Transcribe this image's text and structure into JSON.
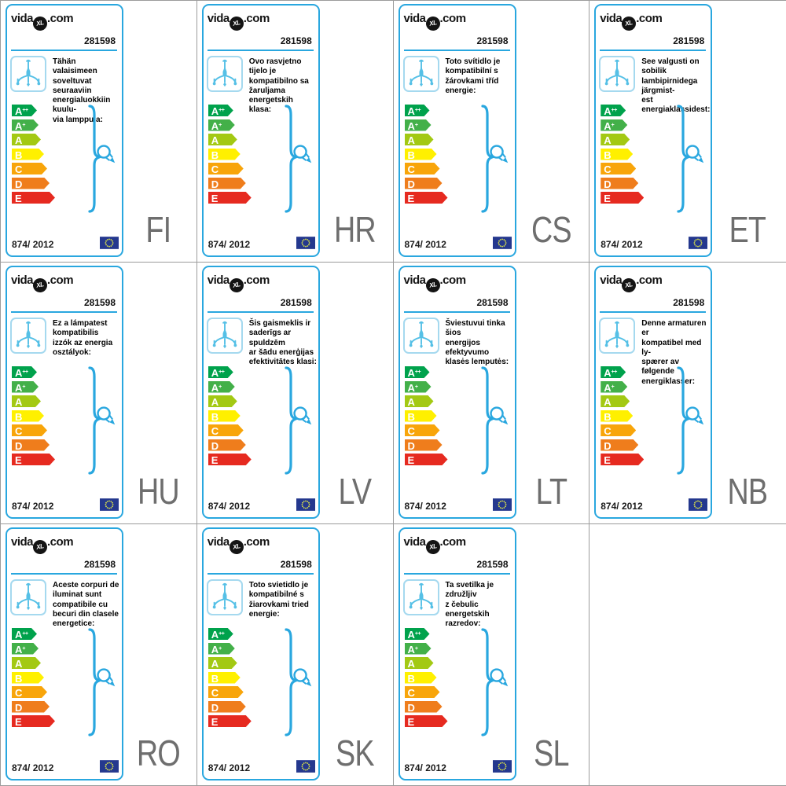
{
  "shared": {
    "logo_prefix": "vida",
    "logo_mark": "XL",
    "logo_suffix": ".com",
    "product_number": "281598",
    "regulation_number": "874/ 2012",
    "accent_color": "#29A7DF",
    "icon_color": "#55C0E6",
    "lang_code_color": "#6E6E6E",
    "grid_line_color": "#9C9C9C",
    "eu_flag": {
      "background": "#24388E",
      "star_color": "#D9E04A"
    },
    "energy_classes": [
      {
        "letter": "A",
        "sup": "++",
        "color": "#00A24C",
        "width": 32
      },
      {
        "letter": "A",
        "sup": "+",
        "color": "#43B049",
        "width": 34
      },
      {
        "letter": "A",
        "sup": "",
        "color": "#A3C913",
        "width": 37
      },
      {
        "letter": "B",
        "sup": "",
        "color": "#FFF000",
        "width": 41
      },
      {
        "letter": "C",
        "sup": "",
        "color": "#F8A50A",
        "width": 45
      },
      {
        "letter": "D",
        "sup": "",
        "color": "#EF7D1C",
        "width": 48
      },
      {
        "letter": "E",
        "sup": "",
        "color": "#E62A20",
        "width": 55
      }
    ]
  },
  "labels": [
    {
      "lang_code": "FI",
      "description": "Tähän valaisimeen\nsoveltuvat seuraaviin\nenergialuokkiin kuulu-\nvia lamppuja:"
    },
    {
      "lang_code": "HR",
      "description": "Ovo rasvjetno tijelo je\nkompatibilno sa\nžaruljama energetskih\nklasa:"
    },
    {
      "lang_code": "CS",
      "description": "Toto svítidlo je\nkompatibilní s\nžárovkami tříd\nenergie:"
    },
    {
      "lang_code": "ET",
      "description": "See valgusti on sobilik\nlambipirnidega järgmist-\nest energiaklassidest:"
    },
    {
      "lang_code": "HU",
      "description": "Ez a lámpatest\nkompatibilis\nizzók az energia\nosztályok:"
    },
    {
      "lang_code": "LV",
      "description": "Šis gaismeklis ir\nsaderīgs ar spuldzēm\nar šādu enerģijas\nefektivitātes klasi:"
    },
    {
      "lang_code": "LT",
      "description": "Šviestuvui tinka šios\nenergijos efektyvumo\nklasės lemputės:"
    },
    {
      "lang_code": "NB",
      "description": "Denne armaturen er\nkompatibel med ly-\nspærer av følgende\nenergiklasser:"
    },
    {
      "lang_code": "RO",
      "description": "Aceste corpuri de\niluminat sunt\ncompatibile cu\nbecuri din clasele\nenergetice:"
    },
    {
      "lang_code": "SK",
      "description": "Toto svietidlo je\nkompatibilné s\nžiarovkami tried\nenergie:"
    },
    {
      "lang_code": "SL",
      "description": "Ta svetilka je združljiv\nz čebulic energetskih\nrazredov:"
    }
  ]
}
